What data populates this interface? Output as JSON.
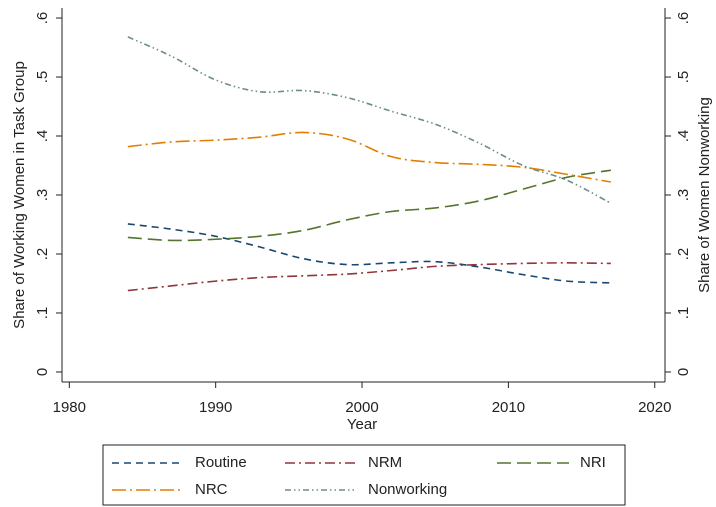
{
  "chart_data": {
    "type": "line",
    "x_label": "Year",
    "y_label": "Share of Working Women in Task Group",
    "y2_label": "Share of Women Nonworking",
    "x": [
      1984,
      1987,
      1990,
      1993,
      1996,
      1999,
      2002,
      2005,
      2008,
      2011,
      2014,
      2017
    ],
    "series": [
      {
        "name": "Routine",
        "color": "#1a476f",
        "dash": "7,5",
        "values": [
          0.251,
          0.242,
          0.23,
          0.212,
          0.192,
          0.182,
          0.185,
          0.187,
          0.178,
          0.165,
          0.154,
          0.151
        ]
      },
      {
        "name": "NRM",
        "color": "#90353b",
        "dash": "10,4,2,4",
        "values": [
          0.138,
          0.146,
          0.154,
          0.16,
          0.163,
          0.166,
          0.172,
          0.179,
          0.182,
          0.184,
          0.185,
          0.184
        ]
      },
      {
        "name": "NRI",
        "color": "#55752f",
        "dash": "14,6",
        "values": [
          0.228,
          0.223,
          0.225,
          0.23,
          0.24,
          0.258,
          0.272,
          0.278,
          0.29,
          0.31,
          0.33,
          0.342
        ]
      },
      {
        "name": "NRC",
        "color": "#e37e00",
        "dash": "14,4,2,4",
        "values": [
          0.382,
          0.39,
          0.393,
          0.398,
          0.406,
          0.395,
          0.365,
          0.355,
          0.352,
          0.347,
          0.335,
          0.322
        ]
      },
      {
        "name": "Nonworking",
        "color": "#6e8e84",
        "dash": "6,3,1.5,3,1.5,3",
        "axis": "y2",
        "values": [
          0.568,
          0.535,
          0.495,
          0.475,
          0.477,
          0.465,
          0.442,
          0.42,
          0.388,
          0.35,
          0.325,
          0.286
        ]
      }
    ],
    "xlim": [
      1979.5,
      2020.7
    ],
    "xticks": [
      1980,
      1990,
      2000,
      2010,
      2020
    ],
    "ylim": [
      -0.017,
      0.617
    ],
    "yticks": [
      0,
      {
        "value": 0.1,
        "label": ".1"
      },
      {
        "value": 0.2,
        "label": ".2"
      },
      {
        "value": 0.3,
        "label": ".3"
      },
      {
        "value": 0.4,
        "label": ".4"
      },
      {
        "value": 0.5,
        "label": ".5"
      },
      {
        "value": 0.6,
        "label": ".6"
      }
    ],
    "y2lim": [
      -0.017,
      0.617
    ],
    "y2ticks": [
      0,
      {
        "value": 0.1,
        "label": ".1"
      },
      {
        "value": 0.2,
        "label": ".2"
      },
      {
        "value": 0.3,
        "label": ".3"
      },
      {
        "value": 0.4,
        "label": ".4"
      },
      {
        "value": 0.5,
        "label": ".5"
      },
      {
        "value": 0.6,
        "label": ".6"
      }
    ],
    "grid": false,
    "legend": "bottom"
  }
}
